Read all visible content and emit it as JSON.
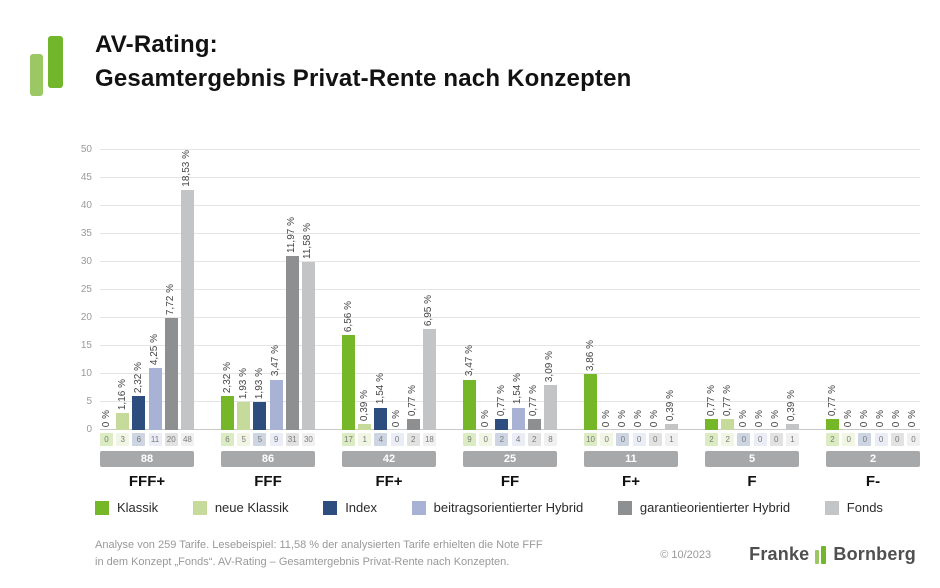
{
  "header": {
    "title_line1": "AV-Rating:",
    "title_line2": "Gesamtergebnis Privat-Rente nach Konzepten"
  },
  "chart_data": {
    "type": "bar",
    "title": "AV-Rating: Gesamtergebnis Privat-Rente nach Konzepten",
    "categories": [
      "FFF+",
      "FFF",
      "FF+",
      "FF",
      "F+",
      "F",
      "F-"
    ],
    "group_totals": [
      88,
      86,
      42,
      25,
      11,
      5,
      2
    ],
    "ylim": [
      0,
      50
    ],
    "yticks": [
      0,
      5,
      10,
      15,
      20,
      25,
      30,
      35,
      40,
      45,
      50
    ],
    "grid": true,
    "legend_position": "bottom",
    "series": [
      {
        "name": "Klassik",
        "color": "#76b72a",
        "chip_color": "#dcecc2",
        "counts": [
          0,
          6,
          17,
          9,
          10,
          2,
          2
        ],
        "percent_labels": [
          "0 %",
          "2,32 %",
          "6,56 %",
          "3,47 %",
          "3,86 %",
          "0,77 %",
          "0,77 %"
        ]
      },
      {
        "name": "neue Klassik",
        "color": "#c6da9b",
        "chip_color": "#f0f5e4",
        "counts": [
          3,
          5,
          1,
          0,
          0,
          2,
          0
        ],
        "percent_labels": [
          "1,16 %",
          "1,93 %",
          "0,39 %",
          "0 %",
          "0 %",
          "0,77 %",
          "0 %"
        ]
      },
      {
        "name": "Index",
        "color": "#2c4d7e",
        "chip_color": "#cdd5e2",
        "counts": [
          6,
          5,
          4,
          2,
          0,
          0,
          0
        ],
        "percent_labels": [
          "2,32 %",
          "1,93 %",
          "1,54 %",
          "0,77 %",
          "0 %",
          "0 %",
          "0 %"
        ]
      },
      {
        "name": "beitragsorientierter Hybrid",
        "color": "#a7b2d5",
        "chip_color": "#eaedf6",
        "counts": [
          11,
          9,
          0,
          4,
          0,
          0,
          0
        ],
        "percent_labels": [
          "4,25 %",
          "3,47 %",
          "0 %",
          "1,54 %",
          "0 %",
          "0 %",
          "0 %"
        ]
      },
      {
        "name": "garantieorientierter Hybrid",
        "color": "#8d8f90",
        "chip_color": "#e2e2e2",
        "counts": [
          20,
          31,
          2,
          2,
          0,
          0,
          0
        ],
        "percent_labels": [
          "7,72 %",
          "11,97 %",
          "0,77 %",
          "0,77 %",
          "0 %",
          "0 %",
          "0 %"
        ]
      },
      {
        "name": "Fonds",
        "color": "#c3c4c5",
        "chip_color": "#f0f0f0",
        "counts": [
          48,
          30,
          18,
          8,
          1,
          1,
          0
        ],
        "percent_labels": [
          "18,53 %",
          "11,58 %",
          "6,95 %",
          "3,09 %",
          "0,39 %",
          "0,39 %",
          "0 %"
        ]
      }
    ]
  },
  "footer": {
    "line1": "Analyse von 259 Tarife. Lesebeispiel: 11,58 % der analysierten Tarife erhielten die Note FFF",
    "line2": "in dem Konzept „Fonds“. AV-Rating – Gesamtergebnis Privat-Rente nach Konzepten.",
    "copyright": "© 10/2023",
    "brand_left": "Franke",
    "brand_right": "Bornberg"
  }
}
